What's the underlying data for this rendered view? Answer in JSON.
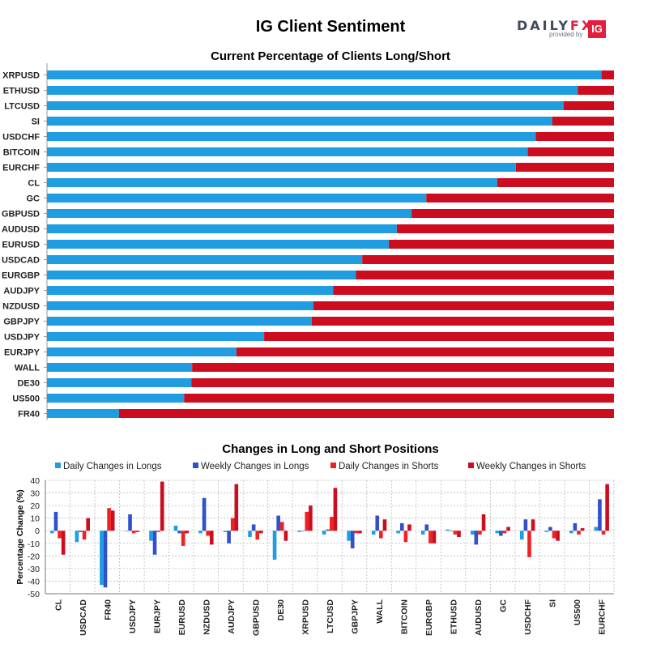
{
  "header": {
    "title": "IG Client Sentiment",
    "brand_word_a": "DAILY",
    "brand_word_b": "FX",
    "brand_sub": "provided by",
    "brand_badge": "IG"
  },
  "colors": {
    "long": "#1f9de0",
    "short": "#cc0d1f",
    "daily_longs": "#1f9de0",
    "weekly_longs": "#3050cc",
    "daily_shorts": "#ee2222",
    "weekly_shorts": "#cc0d1f"
  },
  "chart_data": [
    {
      "type": "bar",
      "orientation": "horizontal",
      "stacked": true,
      "title": "Current Percentage of Clients Long/Short",
      "categories": [
        "XRPUSD",
        "ETHUSD",
        "LTCUSD",
        "SI",
        "USDCHF",
        "BITCOIN",
        "EURCHF",
        "CL",
        "GC",
        "GBPUSD",
        "AUDUSD",
        "EURUSD",
        "USDCAD",
        "EURGBP",
        "AUDJPY",
        "NZDUSD",
        "GBPJPY",
        "USDJPY",
        "EURJPY",
        "WALL",
        "DE30",
        "US500",
        "FR40"
      ],
      "series": [
        {
          "role": "long",
          "values": [
            97.8,
            93.6,
            91.1,
            89.1,
            86.2,
            84.8,
            82.7,
            79.4,
            66.9,
            64.3,
            61.7,
            60.3,
            55.6,
            54.5,
            50.5,
            47.0,
            46.7,
            38.3,
            33.4,
            25.6,
            25.5,
            24.2,
            12.7
          ]
        },
        {
          "role": "short",
          "values": [
            2.2,
            6.4,
            8.9,
            10.9,
            13.8,
            15.2,
            17.3,
            20.6,
            33.1,
            35.7,
            38.3,
            39.7,
            44.4,
            45.5,
            49.5,
            53.0,
            53.3,
            61.7,
            66.6,
            74.4,
            74.5,
            75.8,
            87.3
          ]
        }
      ],
      "xlim": [
        0,
        100
      ],
      "grid": false
    },
    {
      "type": "bar",
      "title": "Changes in Long and Short Positions",
      "ylabel": "Percentage Change (%)",
      "ylim": [
        -50,
        40
      ],
      "yticks": [
        40,
        30,
        20,
        10,
        0,
        -10,
        -20,
        -30,
        -40,
        -50
      ],
      "grid": true,
      "legend_position": "top",
      "categories": [
        "CL",
        "USDCAD",
        "FR40",
        "USDJPY",
        "EURJPY",
        "EURUSD",
        "NZDUSD",
        "AUDJPY",
        "GBPUSD",
        "DE30",
        "XRPUSD",
        "LTCUSD",
        "GBPJPY",
        "WALL",
        "BITCOIN",
        "EURGBP",
        "ETHUSD",
        "AUDUSD",
        "GC",
        "USDCHF",
        "SI",
        "US500",
        "EURCHF"
      ],
      "series": [
        {
          "name": "Daily Changes in Longs",
          "values": [
            -2,
            -9,
            -43,
            0,
            -8,
            4,
            -2,
            -1,
            -5,
            -23,
            -1,
            -3,
            -8,
            -3,
            -2,
            -3,
            1,
            -3,
            -2,
            -7,
            -1,
            -2,
            3
          ]
        },
        {
          "name": "Weekly Changes in Longs",
          "values": [
            15,
            -1,
            -45,
            13,
            -19,
            -2,
            26,
            -10,
            5,
            12,
            0,
            1,
            -14,
            12,
            6,
            5,
            0,
            -11,
            -4,
            9,
            3,
            6,
            25
          ]
        },
        {
          "name": "Daily Changes in Shorts",
          "values": [
            -6,
            -7,
            18,
            -2,
            -1,
            -12,
            -4,
            10,
            -7,
            7,
            15,
            11,
            -2,
            -6,
            -9,
            -10,
            -3,
            -3,
            -2,
            -21,
            -6,
            -3,
            -3
          ]
        },
        {
          "name": "Weekly Changes in Shorts",
          "values": [
            -19,
            10,
            16,
            -1,
            39,
            -2,
            -11,
            37,
            -2,
            -8,
            20,
            34,
            -2,
            9,
            5,
            -10,
            -5,
            13,
            3,
            9,
            -8,
            2,
            37
          ]
        }
      ]
    }
  ]
}
